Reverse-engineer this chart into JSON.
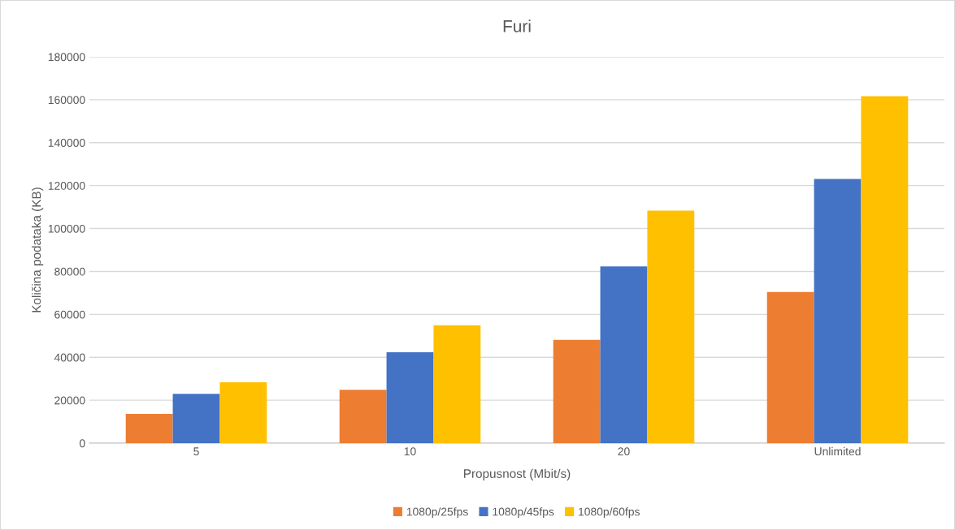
{
  "chart_data": {
    "type": "bar",
    "title": "Furi",
    "xlabel": "Propusnost (Mbit/s)",
    "ylabel": "Količina podataka (KB)",
    "categories": [
      "5",
      "10",
      "20",
      "Unlimited"
    ],
    "series": [
      {
        "name": "1080p/25fps",
        "color": "#ed7d31",
        "values": [
          13600,
          24900,
          48100,
          70400
        ]
      },
      {
        "name": "1080p/45fps",
        "color": "#4472c4",
        "values": [
          23000,
          42400,
          82300,
          123100
        ]
      },
      {
        "name": "1080p/60fps",
        "color": "#ffc000",
        "values": [
          28400,
          54900,
          108300,
          161700
        ]
      }
    ],
    "ylim": [
      0,
      180000
    ],
    "yticks": [
      0,
      20000,
      40000,
      60000,
      80000,
      100000,
      120000,
      140000,
      160000,
      180000
    ],
    "grid": "y",
    "legend": "bottom"
  }
}
